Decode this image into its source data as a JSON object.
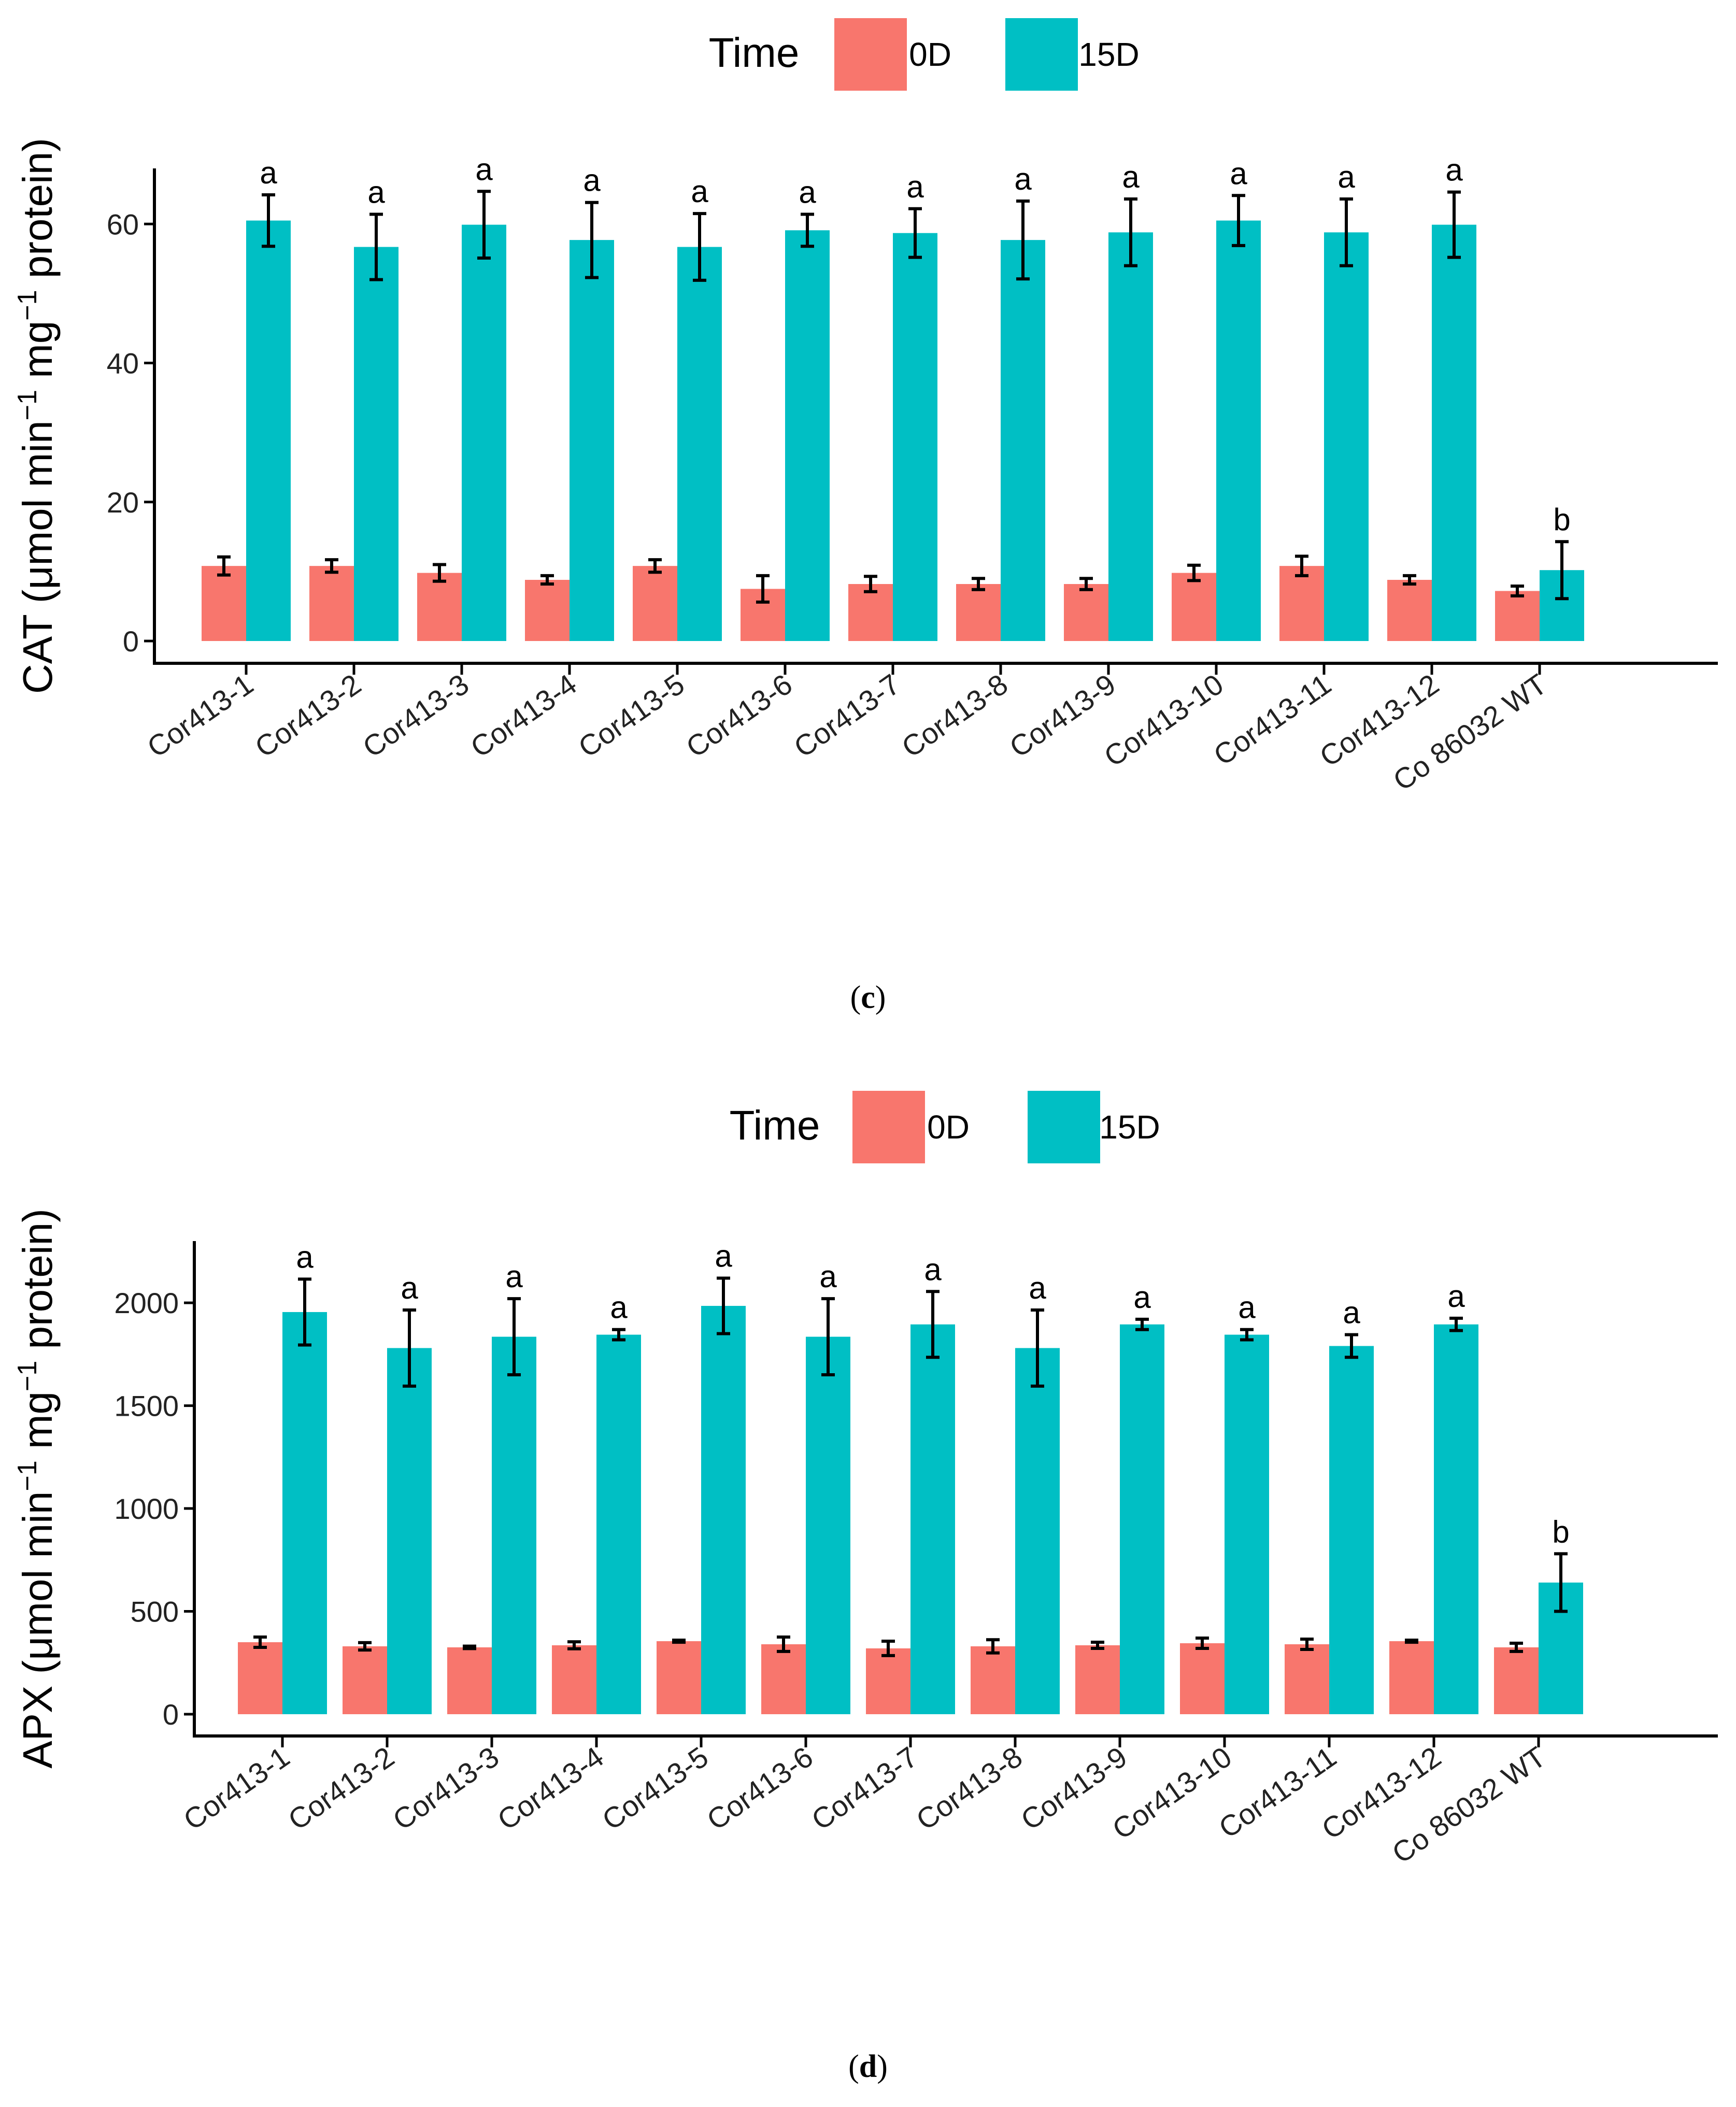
{
  "colors": {
    "d0": "#F8766D",
    "d15": "#00BFC4",
    "axis": "#000000"
  },
  "chart_data": [
    {
      "type": "bar",
      "caption": "(c)",
      "legend": {
        "title": "Time",
        "entries": [
          "0D",
          "15D"
        ],
        "position": "top"
      },
      "ylabel_parts": [
        "CAT (μmol min",
        "−1",
        " mg",
        "−1",
        " protein)"
      ],
      "ylim": [
        0,
        68
      ],
      "yticks": [
        0,
        20,
        40,
        60
      ],
      "categories": [
        "Cor413-1",
        "Cor413-2",
        "Cor413-3",
        "Cor413-4",
        "Cor413-5",
        "Cor413-6",
        "Cor413-7",
        "Cor413-8",
        "Cor413-9",
        "Cor413-10",
        "Cor413-11",
        "Cor413-12",
        "Co 86032 WT"
      ],
      "series": [
        {
          "name": "0D",
          "values": [
            10.8,
            10.8,
            9.8,
            8.8,
            10.8,
            7.5,
            8.2,
            8.2,
            8.2,
            9.8,
            10.8,
            8.8,
            7.2
          ],
          "errors": [
            1.3,
            0.9,
            1.2,
            0.6,
            0.9,
            1.9,
            1.1,
            0.8,
            0.8,
            1.1,
            1.4,
            0.6,
            0.7
          ]
        },
        {
          "name": "15D",
          "values": [
            60.5,
            56.7,
            59.9,
            57.7,
            56.7,
            59.1,
            58.7,
            57.7,
            58.8,
            60.5,
            58.8,
            59.9,
            10.2
          ],
          "errors": [
            3.7,
            4.7,
            4.8,
            5.4,
            4.8,
            2.3,
            3.5,
            5.6,
            4.8,
            3.6,
            4.8,
            4.7,
            4.1
          ],
          "letters": [
            "a",
            "a",
            "a",
            "a",
            "a",
            "a",
            "a",
            "a",
            "a",
            "a",
            "a",
            "a",
            "b"
          ]
        }
      ]
    },
    {
      "type": "bar",
      "caption": "(d)",
      "legend": {
        "title": "Time",
        "entries": [
          "0D",
          "15D"
        ],
        "position": "top"
      },
      "ylabel_parts": [
        "APX (μmol min",
        "−1",
        " mg",
        "−1",
        " protein)"
      ],
      "ylim": [
        0,
        2300
      ],
      "yticks": [
        0,
        500,
        1000,
        1500,
        2000
      ],
      "categories": [
        "Cor413-1",
        "Cor413-2",
        "Cor413-3",
        "Cor413-4",
        "Cor413-5",
        "Cor413-6",
        "Cor413-7",
        "Cor413-8",
        "Cor413-9",
        "Cor413-10",
        "Cor413-11",
        "Cor413-12",
        "Co 86032 WT"
      ],
      "series": [
        {
          "name": "0D",
          "values": [
            350,
            330,
            325,
            335,
            355,
            340,
            320,
            330,
            335,
            345,
            340,
            355,
            325
          ],
          "errors": [
            25,
            18,
            6,
            17,
            5,
            35,
            35,
            32,
            15,
            25,
            25,
            5,
            20
          ]
        },
        {
          "name": "15D",
          "values": [
            1955,
            1780,
            1835,
            1845,
            1985,
            1835,
            1895,
            1780,
            1895,
            1845,
            1790,
            1895,
            640
          ],
          "errors": [
            160,
            185,
            185,
            25,
            135,
            185,
            160,
            185,
            25,
            25,
            55,
            30,
            140
          ],
          "letters": [
            "a",
            "a",
            "a",
            "a",
            "a",
            "a",
            "a",
            "a",
            "a",
            "a",
            "a",
            "a",
            "b"
          ]
        }
      ]
    }
  ]
}
